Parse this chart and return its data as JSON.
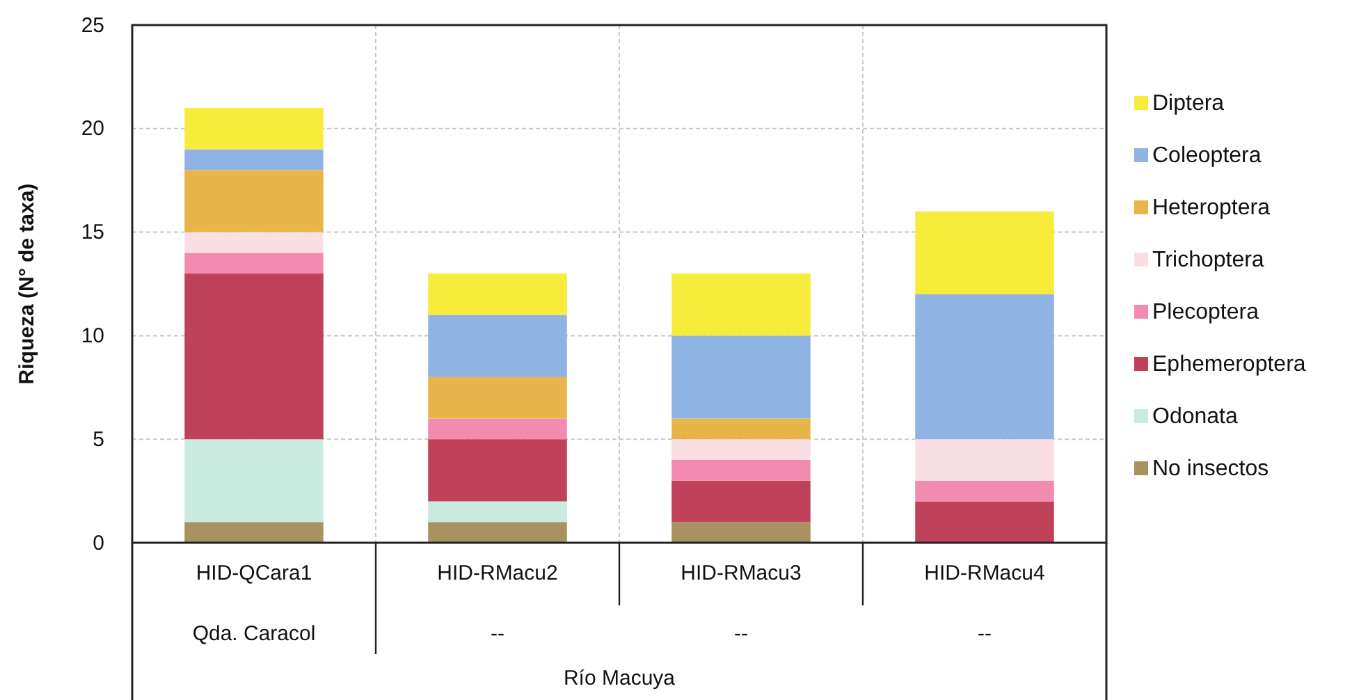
{
  "chart_data": {
    "type": "bar",
    "stacked": true,
    "ylabel": "Riqueza (N° de taxa)",
    "xlabel": "Río Macuya",
    "categories": [
      "HID-QCara1",
      "HID-RMacu2",
      "HID-RMacu3",
      "HID-RMacu4"
    ],
    "series": [
      {
        "name": "No insectos",
        "color": "#a89260",
        "values": [
          1,
          1,
          1,
          0
        ]
      },
      {
        "name": "Odonata",
        "color": "#c9eadf",
        "values": [
          4,
          1,
          0,
          0
        ]
      },
      {
        "name": "Ephemeroptera",
        "color": "#c0415a",
        "values": [
          8,
          3,
          2,
          2
        ]
      },
      {
        "name": "Plecoptera",
        "color": "#f38bb0",
        "values": [
          1,
          1,
          1,
          1
        ]
      },
      {
        "name": "Trichoptera",
        "color": "#f9dfe4",
        "values": [
          1,
          0,
          1,
          2
        ]
      },
      {
        "name": "Heteroptera",
        "color": "#e8b54a",
        "values": [
          3,
          2,
          1,
          0
        ]
      },
      {
        "name": "Coleoptera",
        "color": "#8fb4e3",
        "values": [
          1,
          3,
          4,
          7
        ]
      },
      {
        "name": "Diptera",
        "color": "#f7ec3c",
        "values": [
          2,
          2,
          3,
          4
        ]
      }
    ],
    "annotations": [
      "Qda. Caracol",
      "--",
      "--",
      "--"
    ],
    "ylim": [
      0,
      25
    ],
    "yticks": [
      0,
      5,
      10,
      15,
      20,
      25
    ],
    "grid": true,
    "legend": "right"
  }
}
